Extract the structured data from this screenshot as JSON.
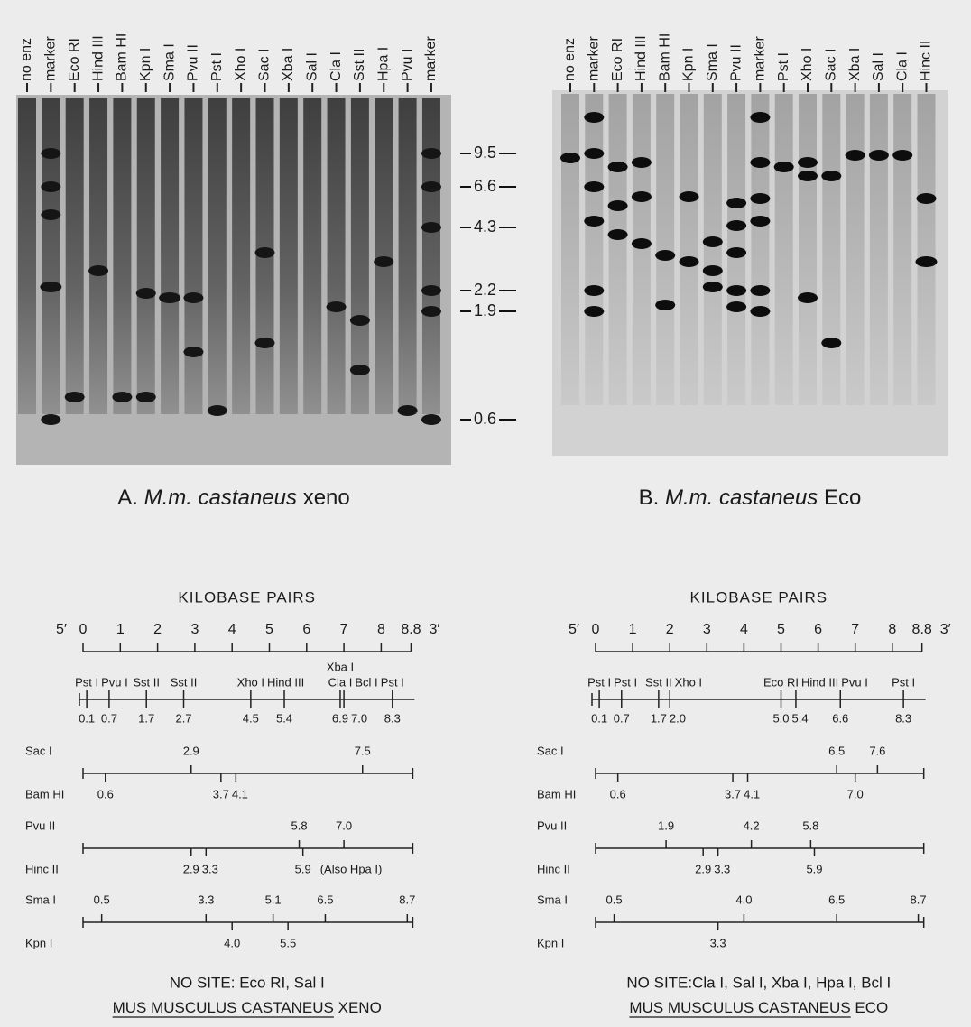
{
  "gel_a": {
    "lanes": [
      "no enz",
      "marker",
      "Eco RI",
      "Hind III",
      "Bam HI",
      "Kpn I",
      "Sma I",
      "Pvu II",
      "Pst I",
      "Xho I",
      "Sac I",
      "Xba I",
      "Sal I",
      "Cla I",
      "Sst II",
      "Hpa I",
      "Pvu I",
      "marker"
    ],
    "caption": {
      "letter": "A.",
      "species": "M.m. castaneus",
      "probe": "xeno"
    }
  },
  "size_markers": [
    "9.5",
    "6.6",
    "4.3",
    "2.2",
    "1.9",
    "0.6"
  ],
  "gel_b": {
    "lanes": [
      "no enz",
      "marker",
      "Eco RI",
      "Hind III",
      "Bam HI",
      "Kpn I",
      "Sma I",
      "Pvu II",
      "marker",
      "Pst I",
      "Xho I",
      "Sac I",
      "Xba I",
      "Sal I",
      "Cla I",
      "Hinc II"
    ],
    "caption": {
      "letter": "B.",
      "species": "M.m. castaneus",
      "probe": "Eco"
    }
  },
  "map_a": {
    "heading": "KILOBASE PAIRS",
    "five_prime": "5′",
    "three_prime": "3′",
    "scale": [
      "0",
      "1",
      "2",
      "3",
      "4",
      "5",
      "6",
      "7",
      "8",
      "8.8"
    ],
    "top_sites": [
      {
        "labels": [
          "Pst I"
        ],
        "position": "0.1"
      },
      {
        "labels": [
          "Pvu I"
        ],
        "position": "0.7"
      },
      {
        "labels": [
          "Sst II"
        ],
        "position": "1.7"
      },
      {
        "labels": [
          "Sst II"
        ],
        "position": "2.7"
      },
      {
        "labels": [
          "Xho I"
        ],
        "position": "4.5"
      },
      {
        "labels": [
          "Hind III"
        ],
        "position": "5.4"
      },
      {
        "labels": [
          "Xba I",
          "Cla I"
        ],
        "position": "6.9"
      },
      {
        "labels": [
          "Bcl I"
        ],
        "position": "7.0"
      },
      {
        "labels": [
          "Pst I"
        ],
        "position": "8.3"
      }
    ],
    "rows": [
      {
        "above": {
          "enzyme": "Sac I",
          "sites": [
            "2.9",
            "7.5"
          ]
        },
        "below": {
          "enzyme": "Bam HI",
          "sites": [
            "0.6",
            "3.7",
            "4.1"
          ]
        }
      },
      {
        "above": {
          "enzyme": "Pvu II",
          "sites": [
            "5.8",
            "7.0"
          ]
        },
        "below": {
          "enzyme": "Hinc II",
          "sites": [
            "2.9",
            "3.3",
            "5.9"
          ],
          "note": "(Also Hpa I)"
        }
      },
      {
        "above": {
          "enzyme": "Sma I",
          "sites": [
            "0.5",
            "3.3",
            "5.1",
            "6.5",
            "8.7"
          ]
        },
        "below": {
          "enzyme": "Kpn I",
          "sites": [
            "4.0",
            "5.5"
          ]
        }
      }
    ],
    "no_site": "NO SITE: Eco RI, Sal I",
    "title": "MUS MUSCULUS CASTANEUS",
    "title_suffix": "XENO"
  },
  "map_b": {
    "heading": "KILOBASE PAIRS",
    "five_prime": "5′",
    "three_prime": "3′",
    "scale": [
      "0",
      "1",
      "2",
      "3",
      "4",
      "5",
      "6",
      "7",
      "8",
      "8.8"
    ],
    "top_sites": [
      {
        "labels": [
          "Pst I"
        ],
        "position": "0.1"
      },
      {
        "labels": [
          "Pst I"
        ],
        "position": "0.7"
      },
      {
        "labels": [
          "Sst II"
        ],
        "position": "1.7"
      },
      {
        "labels": [
          "Xho I"
        ],
        "position": "2.0"
      },
      {
        "labels": [
          "Eco RI"
        ],
        "position": "5.0"
      },
      {
        "labels": [
          "Hind III"
        ],
        "position": "5.4"
      },
      {
        "labels": [
          "Pvu I"
        ],
        "position": "6.6"
      },
      {
        "labels": [
          "Pst I"
        ],
        "position": "8.3"
      }
    ],
    "rows": [
      {
        "above": {
          "enzyme": "Sac I",
          "sites": [
            "6.5",
            "7.6"
          ]
        },
        "below": {
          "enzyme": "Bam HI",
          "sites": [
            "0.6",
            "3.7",
            "4.1",
            "7.0"
          ]
        }
      },
      {
        "above": {
          "enzyme": "Pvu II",
          "sites": [
            "1.9",
            "4.2",
            "5.8"
          ]
        },
        "below": {
          "enzyme": "Hinc II",
          "sites": [
            "2.9",
            "3.3",
            "5.9"
          ]
        }
      },
      {
        "above": {
          "enzyme": "Sma I",
          "sites": [
            "0.5",
            "4.0",
            "6.5",
            "8.7"
          ]
        },
        "below": {
          "enzyme": "Kpn I",
          "sites": [
            "3.3"
          ]
        }
      }
    ],
    "no_site": "NO SITE:Cla I, Sal I, Xba I, Hpa I, Bcl I",
    "title": "MUS MUSCULUS CASTANEUS",
    "title_suffix": "ECO"
  }
}
